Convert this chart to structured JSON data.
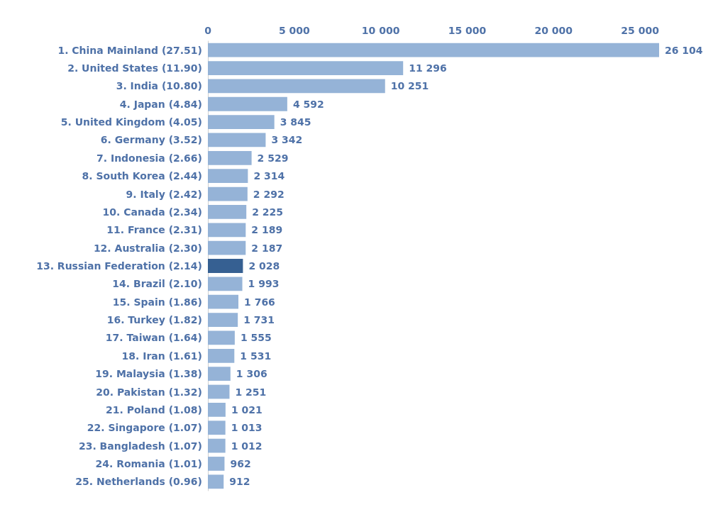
{
  "chart_data": {
    "type": "bar",
    "orientation": "horizontal",
    "categories": [
      "1. China Mainland (27.51)",
      "2. United States (11.90)",
      "3. India (10.80)",
      "4. Japan (4.84)",
      "5. United Kingdom (4.05)",
      "6. Germany (3.52)",
      "7. Indonesia (2.66)",
      "8. South Korea (2.44)",
      "9. Italy (2.42)",
      "10. Canada (2.34)",
      "11. France (2.31)",
      "12. Australia (2.30)",
      "13. Russian Federation (2.14)",
      "14. Brazil (2.10)",
      "15. Spain (1.86)",
      "16. Turkey (1.82)",
      "17. Taiwan (1.64)",
      "18. Iran (1.61)",
      "19. Malaysia (1.38)",
      "20. Pakistan (1.32)",
      "21. Poland (1.08)",
      "22. Singapore (1.07)",
      "23. Bangladesh (1.07)",
      "24. Romania (1.01)",
      "25. Netherlands (0.96)"
    ],
    "values": [
      26104,
      11296,
      10251,
      4592,
      3845,
      3342,
      2529,
      2314,
      2292,
      2225,
      2189,
      2187,
      2028,
      1993,
      1766,
      1731,
      1555,
      1531,
      1306,
      1251,
      1021,
      1013,
      1012,
      962,
      912
    ],
    "value_labels": [
      "26 104",
      "11 296",
      "10 251",
      "4 592",
      "3 845",
      "3 342",
      "2 529",
      "2 314",
      "2 292",
      "2 225",
      "2 189",
      "2 187",
      "2 028",
      "1 993",
      "1 766",
      "1 731",
      "1 555",
      "1 531",
      "1 306",
      "1 251",
      "1 021",
      "1 013",
      "1 012",
      "962",
      "912"
    ],
    "colors": [
      "#95b3d7",
      "#95b3d7",
      "#95b3d7",
      "#95b3d7",
      "#95b3d7",
      "#95b3d7",
      "#95b3d7",
      "#95b3d7",
      "#95b3d7",
      "#95b3d7",
      "#95b3d7",
      "#95b3d7",
      "#366092",
      "#95b3d7",
      "#95b3d7",
      "#95b3d7",
      "#95b3d7",
      "#95b3d7",
      "#95b3d7",
      "#95b3d7",
      "#95b3d7",
      "#95b3d7",
      "#95b3d7",
      "#95b3d7",
      "#95b3d7"
    ],
    "xticks": [
      {
        "value": 0,
        "label": "0"
      },
      {
        "value": 5000,
        "label": "5 000"
      },
      {
        "value": 10000,
        "label": "10 000"
      },
      {
        "value": 15000,
        "label": "15 000"
      },
      {
        "value": 20000,
        "label": "20 000"
      },
      {
        "value": 25000,
        "label": "25 000"
      }
    ],
    "xlim": [
      0,
      26104
    ],
    "grid": false
  }
}
